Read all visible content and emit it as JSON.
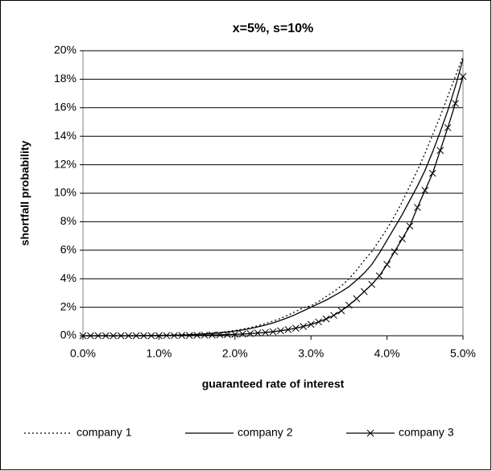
{
  "chart_data": {
    "type": "line",
    "title": "x=5%, s=10%",
    "x_label": "guaranteed rate of interest",
    "y_label": "shortfall probability",
    "x": [
      0,
      0.1,
      0.2,
      0.3,
      0.4,
      0.5,
      0.6,
      0.7,
      0.8,
      0.9,
      1.0,
      1.1,
      1.2,
      1.3,
      1.4,
      1.5,
      1.6,
      1.7,
      1.8,
      1.9,
      2.0,
      2.1,
      2.2,
      2.3,
      2.4,
      2.5,
      2.6,
      2.7,
      2.8,
      2.9,
      3.0,
      3.1,
      3.2,
      3.3,
      3.4,
      3.5,
      3.6,
      3.7,
      3.8,
      3.9,
      4.0,
      4.1,
      4.2,
      4.3,
      4.4,
      4.5,
      4.6,
      4.7,
      4.8,
      4.9,
      5.0
    ],
    "series": [
      {
        "name": "company 1",
        "color": "#000000",
        "dash": "dotted",
        "marker": "none",
        "values": [
          0,
          0,
          0,
          0,
          0,
          0,
          0,
          0,
          0.01,
          0.02,
          0.03,
          0.04,
          0.05,
          0.07,
          0.09,
          0.11,
          0.14,
          0.18,
          0.23,
          0.29,
          0.37,
          0.46,
          0.57,
          0.7,
          0.85,
          1.02,
          1.22,
          1.45,
          1.7,
          1.98,
          2.1,
          2.4,
          2.75,
          3.1,
          3.5,
          4.0,
          4.6,
          5.3,
          5.9,
          6.7,
          7.5,
          8.4,
          9.4,
          10.5,
          11.6,
          12.8,
          14.1,
          15.4,
          16.8,
          18.2,
          19.6
        ]
      },
      {
        "name": "company 2",
        "color": "#000000",
        "dash": "solid",
        "marker": "none",
        "values": [
          0,
          0,
          0,
          0,
          0,
          0,
          0,
          0,
          0.01,
          0.01,
          0.02,
          0.03,
          0.04,
          0.05,
          0.07,
          0.09,
          0.12,
          0.16,
          0.2,
          0.26,
          0.33,
          0.41,
          0.5,
          0.62,
          0.75,
          0.9,
          1.08,
          1.28,
          1.5,
          1.75,
          2.0,
          2.25,
          2.5,
          2.8,
          3.1,
          3.45,
          3.9,
          4.4,
          5.0,
          5.8,
          6.7,
          7.6,
          8.5,
          9.5,
          10.5,
          11.6,
          12.9,
          14.3,
          15.8,
          17.5,
          19.4
        ]
      },
      {
        "name": "company 3",
        "color": "#000000",
        "dash": "solid",
        "marker": "x",
        "values": [
          0,
          0,
          0,
          0,
          0,
          0,
          0,
          0,
          0,
          0,
          0,
          0.01,
          0.01,
          0.02,
          0.02,
          0.03,
          0.04,
          0.05,
          0.06,
          0.08,
          0.1,
          0.12,
          0.15,
          0.19,
          0.23,
          0.28,
          0.35,
          0.43,
          0.53,
          0.65,
          0.8,
          0.97,
          1.18,
          1.43,
          1.75,
          2.15,
          2.6,
          3.1,
          3.6,
          4.2,
          5.0,
          5.9,
          6.8,
          7.7,
          9.0,
          10.2,
          11.4,
          13.0,
          14.6,
          16.3,
          18.2
        ]
      }
    ],
    "xlim": [
      0,
      5
    ],
    "xticks": [
      {
        "value": 0,
        "label": "0.0%"
      },
      {
        "value": 1,
        "label": "1.0%"
      },
      {
        "value": 2,
        "label": "2.0%"
      },
      {
        "value": 3,
        "label": "3.0%"
      },
      {
        "value": 4,
        "label": "4.0%"
      },
      {
        "value": 5,
        "label": "5.0%"
      }
    ],
    "ylim": [
      0,
      20
    ],
    "yticks": [
      {
        "value": 0,
        "label": "0%"
      },
      {
        "value": 2,
        "label": "2%"
      },
      {
        "value": 4,
        "label": "4%"
      },
      {
        "value": 6,
        "label": "6%"
      },
      {
        "value": 8,
        "label": "8%"
      },
      {
        "value": 10,
        "label": "10%"
      },
      {
        "value": 12,
        "label": "12%"
      },
      {
        "value": 14,
        "label": "14%"
      },
      {
        "value": 16,
        "label": "16%"
      },
      {
        "value": 18,
        "label": "18%"
      },
      {
        "value": 20,
        "label": "20%"
      }
    ],
    "grid": true,
    "legend": "bottom"
  }
}
